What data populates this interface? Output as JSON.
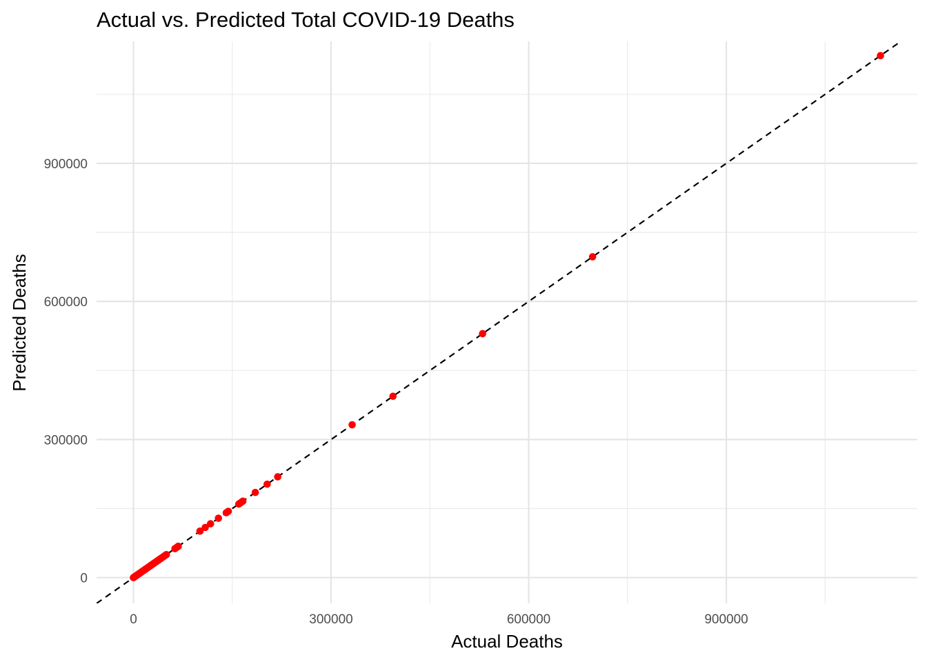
{
  "chart_data": {
    "type": "scatter",
    "title": "Actual vs. Predicted Total COVID-19 Deaths",
    "xlabel": "Actual Deaths",
    "ylabel": "Predicted Deaths",
    "xlim": [
      -56000,
      1190000
    ],
    "ylim": [
      -56000,
      1165000
    ],
    "x_ticks": [
      0,
      300000,
      600000,
      900000
    ],
    "x_tick_labels": [
      "0",
      "300000",
      "600000",
      "900000"
    ],
    "y_ticks": [
      0,
      300000,
      600000,
      900000
    ],
    "y_tick_labels": [
      "0",
      "300000",
      "600000",
      "900000"
    ],
    "x_minor_ticks": [
      150000,
      450000,
      750000,
      1050000
    ],
    "y_minor_ticks": [
      150000,
      450000,
      750000,
      1050000
    ],
    "grid": true,
    "legend": "none",
    "reference_line": {
      "slope": 1,
      "intercept": 0,
      "style": "dashed",
      "color": "#000000"
    },
    "point_color": "#ff0000",
    "points": [
      {
        "x": 0,
        "y": 0
      },
      {
        "x": 1000,
        "y": 1000
      },
      {
        "x": 2000,
        "y": 2000
      },
      {
        "x": 3000,
        "y": 3000
      },
      {
        "x": 4000,
        "y": 4000
      },
      {
        "x": 5000,
        "y": 5000
      },
      {
        "x": 6500,
        "y": 6500
      },
      {
        "x": 8000,
        "y": 8000
      },
      {
        "x": 10000,
        "y": 10000
      },
      {
        "x": 12000,
        "y": 12000
      },
      {
        "x": 14000,
        "y": 14000
      },
      {
        "x": 16000,
        "y": 16000
      },
      {
        "x": 18000,
        "y": 18000
      },
      {
        "x": 20000,
        "y": 20000
      },
      {
        "x": 22000,
        "y": 22000
      },
      {
        "x": 24000,
        "y": 24000
      },
      {
        "x": 26000,
        "y": 26000
      },
      {
        "x": 28000,
        "y": 28000
      },
      {
        "x": 30000,
        "y": 30000
      },
      {
        "x": 32000,
        "y": 32000
      },
      {
        "x": 34000,
        "y": 34000
      },
      {
        "x": 36000,
        "y": 36000
      },
      {
        "x": 38000,
        "y": 38000
      },
      {
        "x": 40000,
        "y": 40000
      },
      {
        "x": 42000,
        "y": 42000
      },
      {
        "x": 45000,
        "y": 45000
      },
      {
        "x": 48000,
        "y": 48000
      },
      {
        "x": 50000,
        "y": 50000
      },
      {
        "x": 63000,
        "y": 63000
      },
      {
        "x": 66000,
        "y": 66000
      },
      {
        "x": 68000,
        "y": 68000
      },
      {
        "x": 101000,
        "y": 101000
      },
      {
        "x": 109000,
        "y": 109000
      },
      {
        "x": 117000,
        "y": 117000
      },
      {
        "x": 129000,
        "y": 129000
      },
      {
        "x": 141000,
        "y": 141000
      },
      {
        "x": 144000,
        "y": 144000
      },
      {
        "x": 160000,
        "y": 160000
      },
      {
        "x": 163000,
        "y": 163000
      },
      {
        "x": 166000,
        "y": 166000
      },
      {
        "x": 185000,
        "y": 185000
      },
      {
        "x": 203000,
        "y": 203000
      },
      {
        "x": 219000,
        "y": 219000
      },
      {
        "x": 332000,
        "y": 332000
      },
      {
        "x": 394000,
        "y": 394000
      },
      {
        "x": 530000,
        "y": 530000
      },
      {
        "x": 697000,
        "y": 697000
      },
      {
        "x": 1134000,
        "y": 1134000
      }
    ]
  }
}
